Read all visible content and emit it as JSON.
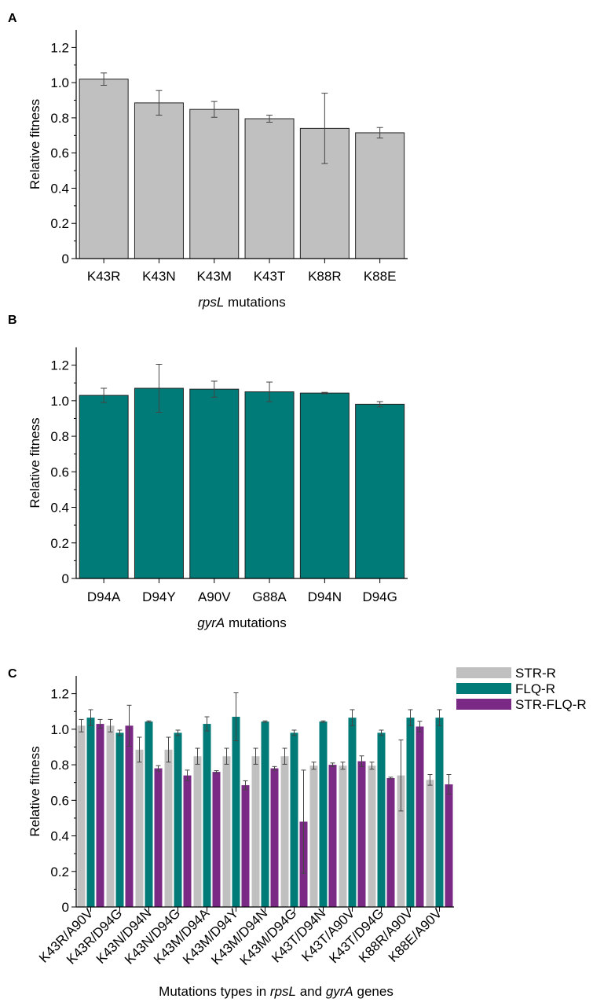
{
  "chart_data": [
    {
      "panel": "A",
      "type": "bar",
      "categories": [
        "K43R",
        "K43N",
        "K43M",
        "K43T",
        "K88R",
        "K88E"
      ],
      "values": [
        1.02,
        0.885,
        0.848,
        0.795,
        0.74,
        0.715
      ],
      "errors": [
        0.035,
        0.07,
        0.045,
        0.02,
        0.2,
        0.03
      ],
      "xlabel_italic": "rpsL",
      "xlabel_rest": " mutations",
      "ylabel": "Relative fitness",
      "ylim": [
        0,
        1.3
      ],
      "yticks": [
        "0",
        "0.2",
        "0.4",
        "0.6",
        "0.8",
        "1.0",
        "1.2"
      ],
      "color": "#c0c0c0"
    },
    {
      "panel": "B",
      "type": "bar",
      "categories": [
        "D94A",
        "D94Y",
        "A90V",
        "G88A",
        "D94N",
        "D94G"
      ],
      "values": [
        1.03,
        1.07,
        1.065,
        1.05,
        1.043,
        0.98
      ],
      "errors": [
        0.04,
        0.135,
        0.045,
        0.055,
        0.004,
        0.015
      ],
      "xlabel_italic": "gyrA",
      "xlabel_rest": " mutations",
      "ylabel": "Relative fitness",
      "ylim": [
        0,
        1.3
      ],
      "yticks": [
        "0",
        "0.2",
        "0.4",
        "0.6",
        "0.8",
        "1.0",
        "1.2"
      ],
      "color": "#007b78"
    },
    {
      "panel": "C",
      "type": "bar",
      "categories": [
        "K43R/A90V",
        "K43R/D94G",
        "K43N/D94N",
        "K43N/D94G",
        "K43M/D94A",
        "K43M/D94Y",
        "K43M/D94N",
        "K43M/D94G",
        "K43T/D94N",
        "K43T/A90V",
        "K43T/D94G",
        "K88R/A90V",
        "K88E/A90V"
      ],
      "series": [
        {
          "name": "STR-R",
          "color": "#c0c0c0",
          "values": [
            1.02,
            1.02,
            0.885,
            0.885,
            0.848,
            0.848,
            0.848,
            0.848,
            0.795,
            0.795,
            0.795,
            0.74,
            0.715
          ],
          "errors": [
            0.035,
            0.035,
            0.07,
            0.07,
            0.045,
            0.045,
            0.045,
            0.045,
            0.02,
            0.02,
            0.02,
            0.2,
            0.03
          ]
        },
        {
          "name": "FLQ-R",
          "color": "#007b78",
          "values": [
            1.065,
            0.98,
            1.043,
            0.98,
            1.03,
            1.07,
            1.043,
            0.98,
            1.043,
            1.065,
            0.98,
            1.065,
            1.065
          ],
          "errors": [
            0.045,
            0.015,
            0.004,
            0.015,
            0.04,
            0.135,
            0.004,
            0.015,
            0.004,
            0.045,
            0.015,
            0.045,
            0.045
          ]
        },
        {
          "name": "STR-FLQ-R",
          "color": "#7a2a85",
          "values": [
            1.03,
            1.02,
            0.78,
            0.74,
            0.76,
            0.685,
            0.78,
            0.48,
            0.8,
            0.82,
            0.725,
            1.015,
            0.69
          ],
          "errors": [
            0.025,
            0.115,
            0.015,
            0.03,
            0.007,
            0.025,
            0.01,
            0.29,
            0.01,
            0.03,
            0.005,
            0.03,
            0.055
          ]
        }
      ],
      "xlabel_parts": [
        "Mutations types in ",
        "rpsL",
        " and ",
        "gyrA",
        " genes"
      ],
      "ylabel": "Relative fitness",
      "ylim": [
        0,
        1.3
      ],
      "yticks": [
        "0",
        "0.2",
        "0.4",
        "0.6",
        "0.8",
        "1.0",
        "1.2"
      ],
      "legend_position": "top-right"
    }
  ]
}
